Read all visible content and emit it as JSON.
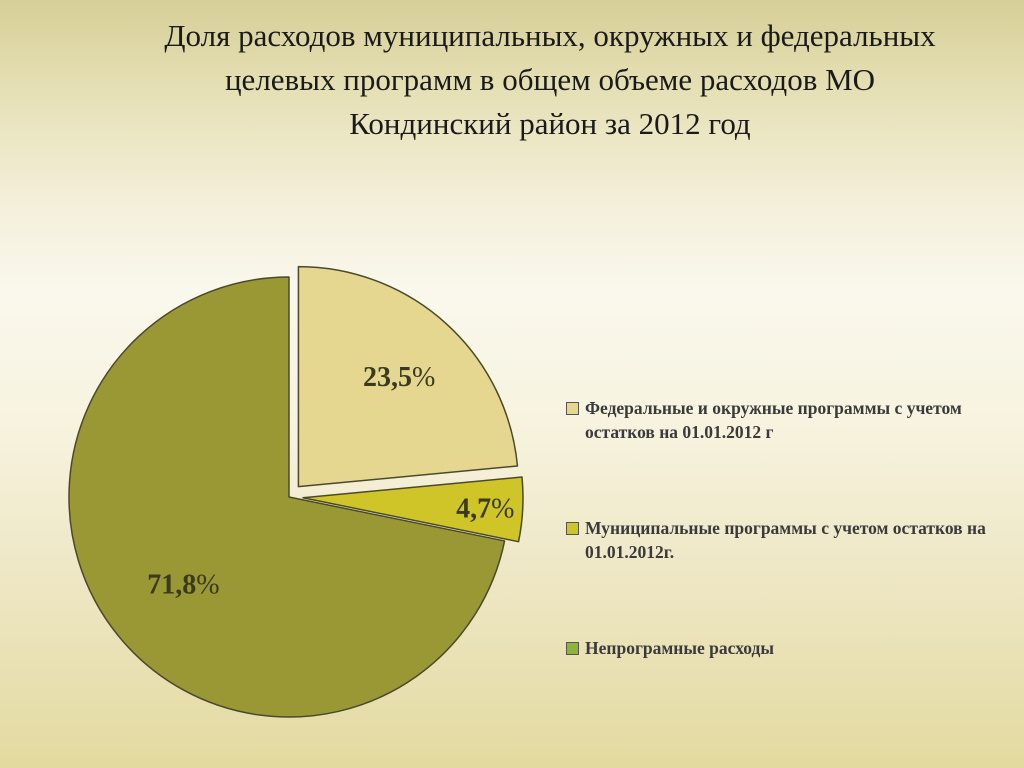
{
  "title": {
    "line1": "Доля расходов муниципальных, окружных и федеральных",
    "line2": "целевых программ в общем объеме расходов МО",
    "line3": "Кондинский район за 2012 год"
  },
  "chart_data": {
    "type": "pie",
    "title": "Доля расходов муниципальных, окружных и федеральных целевых программ в общем объеме расходов МО Кондинский район за 2012 год",
    "slices": [
      {
        "name": "Федеральные и окружные программы с учетом остатков на 01.01.2012 г",
        "value": 23.5,
        "label_num": "23,5",
        "label_pct": "%",
        "color": "#e5d78f",
        "exploded": true
      },
      {
        "name": "Муниципальные программы с учетом остатков на 01.01.2012г.",
        "value": 4.7,
        "label_num": "4,7",
        "label_pct": "%",
        "color": "#cfc428",
        "exploded": true
      },
      {
        "name": "Непрограмные расходы",
        "value": 71.8,
        "label_num": "71,8",
        "label_pct": "%",
        "color": "#999835",
        "exploded": false
      }
    ],
    "legend": {
      "position": "right",
      "items": [
        {
          "label": "Федеральные и окружные программы с учетом остатков на 01.01.2012 г",
          "color": "#e5d78f"
        },
        {
          "label": "Муниципальные программы с учетом остатков на 01.01.2012г.",
          "color": "#cfc428"
        },
        {
          "label": "Непрограмные расходы",
          "color": "#8fb33a"
        }
      ]
    }
  }
}
